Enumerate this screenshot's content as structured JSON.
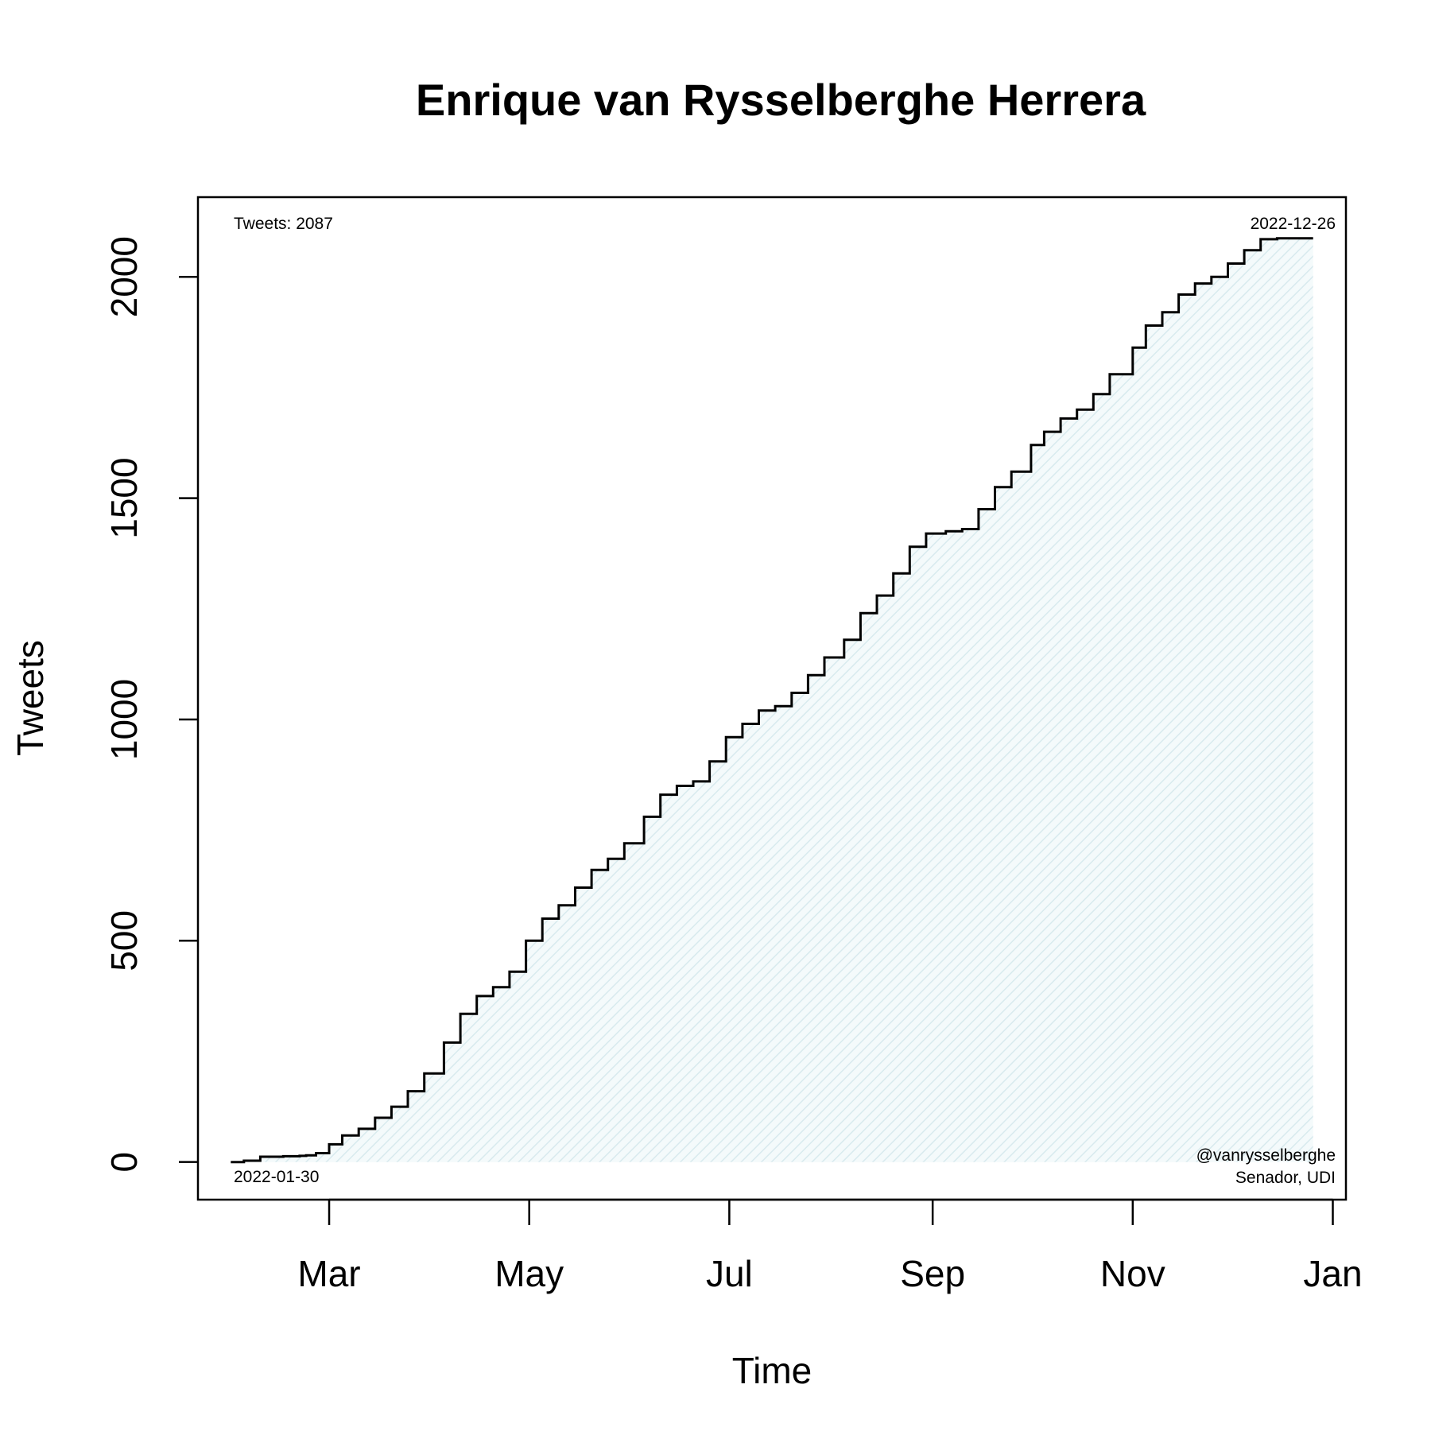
{
  "chart_data": {
    "type": "area",
    "title": "Enrique van Rysselberghe Herrera",
    "xlabel": "Time",
    "ylabel": "Tweets",
    "x_axis": {
      "type": "date",
      "range": [
        "2022-01-20",
        "2023-01-05"
      ]
    },
    "ylim": [
      -85,
      2180
    ],
    "y_ticks": [
      0,
      500,
      1000,
      1500,
      2000
    ],
    "y_tick_labels": [
      "0",
      "500",
      "1000",
      "1500",
      "2000"
    ],
    "x_ticks": [
      "2022-03-01",
      "2022-05-01",
      "2022-07-01",
      "2022-09-01",
      "2022-11-01",
      "2023-01-01"
    ],
    "x_tick_labels": [
      "Mar",
      "May",
      "Jul",
      "Sep",
      "Nov",
      "Jan"
    ],
    "grid": false,
    "colors": {
      "line": "#000000",
      "fill": "#eaf4f6"
    },
    "series": [
      {
        "x": [
          "2022-01-30",
          "2022-02-03",
          "2022-02-08",
          "2022-02-15",
          "2022-02-20",
          "2022-02-22",
          "2022-02-25",
          "2022-03-01",
          "2022-03-05",
          "2022-03-10",
          "2022-03-15",
          "2022-03-20",
          "2022-03-25",
          "2022-03-30",
          "2022-04-05",
          "2022-04-10",
          "2022-04-15",
          "2022-04-20",
          "2022-04-25",
          "2022-04-30",
          "2022-05-05",
          "2022-05-10",
          "2022-05-15",
          "2022-05-20",
          "2022-05-25",
          "2022-05-30",
          "2022-06-05",
          "2022-06-10",
          "2022-06-15",
          "2022-06-20",
          "2022-06-25",
          "2022-06-30",
          "2022-07-05",
          "2022-07-10",
          "2022-07-15",
          "2022-07-20",
          "2022-07-25",
          "2022-07-30",
          "2022-08-05",
          "2022-08-10",
          "2022-08-15",
          "2022-08-20",
          "2022-08-25",
          "2022-08-30",
          "2022-09-05",
          "2022-09-10",
          "2022-09-15",
          "2022-09-20",
          "2022-09-25",
          "2022-10-01",
          "2022-10-05",
          "2022-10-10",
          "2022-10-15",
          "2022-10-20",
          "2022-10-25",
          "2022-11-01",
          "2022-11-05",
          "2022-11-10",
          "2022-11-15",
          "2022-11-20",
          "2022-11-25",
          "2022-11-30",
          "2022-12-05",
          "2022-12-10",
          "2022-12-15",
          "2022-12-20",
          "2022-12-23",
          "2022-12-26"
        ],
        "y": [
          0,
          3,
          12,
          13,
          14,
          15,
          20,
          40,
          60,
          75,
          100,
          125,
          160,
          200,
          270,
          335,
          375,
          395,
          430,
          500,
          550,
          580,
          620,
          660,
          685,
          720,
          780,
          830,
          850,
          860,
          905,
          960,
          990,
          1020,
          1030,
          1060,
          1100,
          1140,
          1180,
          1240,
          1280,
          1330,
          1390,
          1420,
          1425,
          1430,
          1475,
          1525,
          1560,
          1620,
          1650,
          1680,
          1700,
          1735,
          1780,
          1840,
          1890,
          1920,
          1960,
          1985,
          2000,
          2030,
          2060,
          2085,
          2087,
          2087,
          2087,
          2087
        ]
      }
    ],
    "annotations": {
      "tweets": "Tweets: 2087",
      "end_date": "2022-12-26",
      "start_date": "2022-01-30",
      "handle": "@vanrysselberghe",
      "role": "Senador, UDI"
    }
  }
}
